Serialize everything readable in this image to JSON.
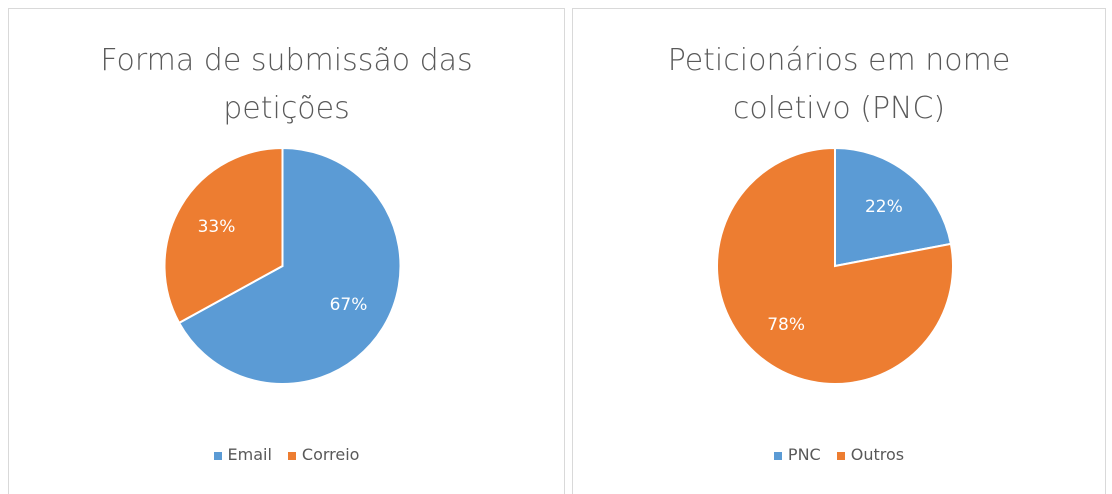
{
  "chart_data": [
    {
      "type": "pie",
      "title": "Forma de submissão das petições",
      "categories": [
        "Email",
        "Correio"
      ],
      "values": [
        67,
        33
      ],
      "value_labels": [
        "67%",
        "33%"
      ],
      "colors": [
        "#5b9bd5",
        "#ed7d31"
      ],
      "legend": "bottom"
    },
    {
      "type": "pie",
      "title": "Peticionários em nome coletivo (PNC)",
      "categories": [
        "PNC",
        "Outros"
      ],
      "values": [
        22,
        78
      ],
      "value_labels": [
        "22%",
        "78%"
      ],
      "colors": [
        "#5b9bd5",
        "#ed7d31"
      ],
      "legend": "bottom"
    }
  ]
}
